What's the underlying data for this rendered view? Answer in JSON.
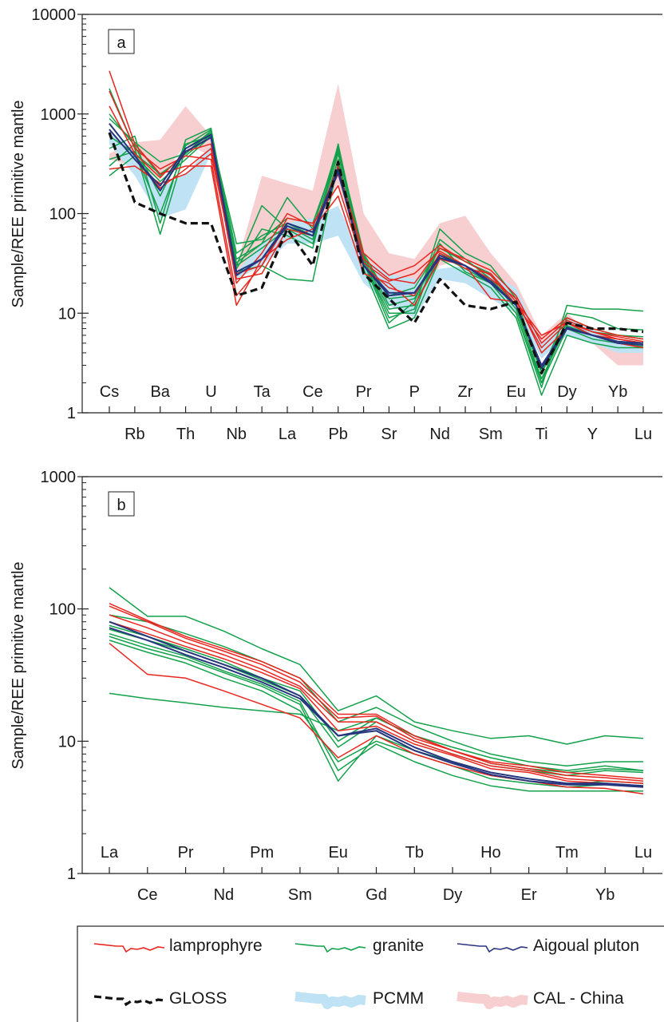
{
  "colors": {
    "lamprophyre": "#e8261f",
    "granite": "#13a14b",
    "aigoual": "#27357e",
    "gloss": "#111111",
    "pcmm": "#bfe3f4",
    "cal_china": "#f8cfd0"
  },
  "legend": {
    "items": [
      {
        "key": "lamprophyre",
        "label": "lamprophyre",
        "style": "line"
      },
      {
        "key": "granite",
        "label": "granite",
        "style": "line"
      },
      {
        "key": "aigoual",
        "label": "Aigoual pluton",
        "style": "line"
      },
      {
        "key": "gloss",
        "label": "GLOSS",
        "style": "dashed"
      },
      {
        "key": "pcmm",
        "label": "PCMM",
        "style": "band"
      },
      {
        "key": "cal_china",
        "label": "CAL - China",
        "style": "band"
      }
    ]
  },
  "chart_data": [
    {
      "type": "line",
      "panel_label": "a",
      "ylabel": "Sample/REE primitive mantle",
      "yscale": "log",
      "ylim": [
        1,
        10000
      ],
      "yticks": [
        "1",
        "10",
        "100",
        "1000",
        "10000"
      ],
      "categories": [
        "Cs",
        "Rb",
        "Ba",
        "Th",
        "U",
        "Nb",
        "Ta",
        "La",
        "Ce",
        "Pb",
        "Pr",
        "Sr",
        "P",
        "Nd",
        "Zr",
        "Sm",
        "Eu",
        "Ti",
        "Dy",
        "Y",
        "Yb",
        "Lu"
      ],
      "bands": [
        {
          "key": "cal_china",
          "upper": [
            400,
            520,
            550,
            1200,
            600,
            30,
            240,
            200,
            170,
            2000,
            100,
            40,
            35,
            80,
            95,
            40,
            20,
            6,
            10,
            6,
            5,
            5
          ],
          "lower": [
            350,
            300,
            220,
            500,
            380,
            25,
            30,
            80,
            50,
            200,
            30,
            22,
            10,
            30,
            35,
            25,
            10,
            4,
            7,
            5,
            3,
            3
          ]
        },
        {
          "key": "pcmm",
          "upper": [
            700,
            400,
            180,
            250,
            480,
            26,
            50,
            80,
            90,
            120,
            35,
            25,
            22,
            28,
            30,
            25,
            18,
            5,
            9,
            7,
            5,
            5
          ],
          "lower": [
            500,
            240,
            90,
            110,
            400,
            22,
            30,
            50,
            50,
            60,
            20,
            12,
            9,
            22,
            20,
            14,
            10,
            3.5,
            6,
            5,
            4,
            4
          ]
        }
      ],
      "series": [
        {
          "group": "granite",
          "values": [
            300,
            500,
            240,
            400,
            650,
            40,
            60,
            80,
            60,
            450,
            40,
            14,
            15,
            45,
            33,
            25,
            12,
            2.5,
            8,
            6,
            5.5,
            5
          ]
        },
        {
          "group": "granite",
          "values": [
            240,
            380,
            210,
            350,
            600,
            35,
            50,
            75,
            55,
            400,
            38,
            12,
            14,
            40,
            30,
            22,
            11,
            2.2,
            7.5,
            6,
            5.2,
            4.8
          ]
        },
        {
          "group": "granite",
          "values": [
            350,
            420,
            100,
            480,
            700,
            30,
            45,
            70,
            50,
            350,
            35,
            11,
            12,
            38,
            28,
            20,
            10,
            2,
            7,
            5.5,
            5,
            4.6
          ]
        },
        {
          "group": "granite",
          "values": [
            450,
            600,
            80,
            550,
            720,
            30,
            120,
            70,
            60,
            300,
            33,
            10,
            10,
            50,
            26,
            20,
            10,
            1.8,
            12,
            11,
            11,
            10.5
          ]
        },
        {
          "group": "granite",
          "values": [
            1800,
            450,
            62,
            450,
            650,
            28,
            70,
            60,
            45,
            500,
            33,
            9,
            11,
            70,
            40,
            30,
            14,
            2.6,
            10,
            9,
            7,
            6.8
          ]
        },
        {
          "group": "granite",
          "values": [
            900,
            520,
            330,
            400,
            680,
            32,
            50,
            145,
            70,
            480,
            32,
            8,
            13,
            55,
            35,
            22,
            12,
            2,
            9,
            7,
            6,
            5.5
          ]
        },
        {
          "group": "granite",
          "values": [
            600,
            400,
            250,
            380,
            620,
            26,
            30,
            22,
            21,
            320,
            28,
            7,
            9,
            35,
            25,
            18,
            9,
            1.5,
            6,
            5,
            4.5,
            4.5
          ]
        },
        {
          "group": "granite",
          "values": [
            1000,
            480,
            150,
            500,
            600,
            50,
            55,
            90,
            80,
            420,
            36,
            15,
            18,
            45,
            33,
            24,
            12,
            2.8,
            8,
            6.5,
            6,
            5.8
          ]
        },
        {
          "group": "lamprophyre",
          "values": [
            2700,
            500,
            250,
            300,
            300,
            12,
            35,
            55,
            70,
            150,
            25,
            20,
            12,
            35,
            30,
            22,
            14,
            4,
            7,
            6,
            5,
            4.5
          ]
        },
        {
          "group": "lamprophyre",
          "values": [
            1700,
            450,
            280,
            380,
            350,
            15,
            30,
            90,
            80,
            190,
            30,
            18,
            15,
            40,
            28,
            25,
            13,
            4.5,
            8,
            6,
            5.5,
            5
          ]
        },
        {
          "group": "lamprophyre",
          "values": [
            1200,
            400,
            230,
            420,
            500,
            20,
            40,
            100,
            75,
            250,
            35,
            22,
            20,
            45,
            35,
            27,
            15,
            5,
            8.5,
            6.5,
            5.8,
            5.2
          ]
        },
        {
          "group": "lamprophyre",
          "values": [
            700,
            350,
            180,
            280,
            450,
            22,
            25,
            70,
            60,
            280,
            40,
            24,
            30,
            48,
            33,
            24,
            12,
            5.5,
            9,
            7,
            6,
            5.5
          ]
        },
        {
          "group": "lamprophyre",
          "values": [
            280,
            300,
            200,
            250,
            400,
            25,
            30,
            80,
            65,
            300,
            32,
            21,
            25,
            42,
            30,
            14,
            13,
            6,
            8,
            6.5,
            5.5,
            5
          ]
        },
        {
          "group": "aigoual",
          "values": [
            800,
            380,
            170,
            420,
            580,
            24,
            35,
            75,
            60,
            260,
            30,
            15,
            16,
            36,
            30,
            20,
            12,
            2.8,
            7,
            6,
            5,
            4.8
          ]
        },
        {
          "group": "aigoual",
          "values": [
            700,
            350,
            190,
            450,
            620,
            26,
            35,
            80,
            65,
            280,
            30,
            16,
            16,
            38,
            30,
            21,
            12,
            3,
            7.2,
            6,
            5.2,
            5
          ]
        },
        {
          "group": "gloss",
          "values": [
            650,
            130,
            100,
            80,
            80,
            15,
            18,
            70,
            30,
            330,
            25,
            14,
            8,
            22,
            12,
            11,
            13,
            2.5,
            8,
            7,
            7,
            6.5
          ]
        }
      ]
    },
    {
      "type": "line",
      "panel_label": "b",
      "ylabel": "Sample/REE primitive mantle",
      "yscale": "log",
      "ylim": [
        1,
        1000
      ],
      "yticks": [
        "1",
        "10",
        "100",
        "1000"
      ],
      "categories": [
        "La",
        "Ce",
        "Pr",
        "Nd",
        "Pm",
        "Sm",
        "Eu",
        "Gd",
        "Tb",
        "Dy",
        "Ho",
        "Er",
        "Tm",
        "Yb",
        "Lu"
      ],
      "series": [
        {
          "group": "granite",
          "values": [
            145,
            88,
            88,
            68,
            50,
            38,
            17,
            22,
            14,
            12,
            10.5,
            11,
            9.5,
            11,
            10.5
          ]
        },
        {
          "group": "granite",
          "values": [
            23,
            21,
            19.5,
            18,
            17,
            16,
            12,
            15,
            11,
            9,
            7.5,
            6.5,
            6,
            6.5,
            6
          ]
        },
        {
          "group": "granite",
          "values": [
            90,
            80,
            65,
            52,
            40,
            30,
            14,
            18,
            13,
            10,
            8,
            7,
            6.5,
            7,
            7
          ]
        },
        {
          "group": "granite",
          "values": [
            70,
            58,
            48,
            38,
            29,
            22,
            9,
            14,
            10,
            8,
            6.5,
            6,
            5.5,
            6,
            5.8
          ]
        },
        {
          "group": "granite",
          "values": [
            62,
            50,
            42,
            33,
            26,
            19,
            5,
            11,
            8.5,
            7,
            5.5,
            5,
            4.7,
            5,
            4.8
          ]
        },
        {
          "group": "granite",
          "values": [
            58,
            47,
            39,
            30,
            24,
            17,
            7,
            10,
            8,
            6.5,
            5.2,
            4.8,
            4.5,
            4.7,
            4.6
          ]
        },
        {
          "group": "granite",
          "values": [
            75,
            62,
            50,
            40,
            30,
            24,
            10,
            15,
            11,
            8.5,
            6.8,
            6.2,
            5.8,
            6.2,
            6
          ]
        },
        {
          "group": "granite",
          "values": [
            65,
            53,
            44,
            34,
            27,
            20,
            6,
            9.5,
            7,
            5.5,
            4.6,
            4.2,
            4.2,
            4.2,
            4.2
          ]
        },
        {
          "group": "lamprophyre",
          "values": [
            110,
            82,
            62,
            50,
            40,
            30,
            16,
            16,
            11,
            8.5,
            7,
            6.5,
            5.8,
            5.5,
            5.2
          ]
        },
        {
          "group": "lamprophyre",
          "values": [
            105,
            80,
            60,
            48,
            38,
            28,
            15,
            15.5,
            10.5,
            8.5,
            6.8,
            6.2,
            5.5,
            5.3,
            5
          ]
        },
        {
          "group": "lamprophyre",
          "values": [
            90,
            72,
            56,
            45,
            35,
            26,
            14,
            14,
            10,
            8,
            6.5,
            6,
            5.2,
            5,
            4.8
          ]
        },
        {
          "group": "lamprophyre",
          "values": [
            55,
            32,
            30,
            24,
            19,
            15,
            7.5,
            11,
            8,
            6.5,
            5.5,
            5,
            4.5,
            4.4,
            4
          ]
        },
        {
          "group": "lamprophyre",
          "values": [
            80,
            65,
            52,
            42,
            33,
            25,
            12,
            13,
            9.5,
            7.8,
            6.2,
            5.8,
            5,
            4.8,
            4.5
          ]
        },
        {
          "group": "aigoual",
          "values": [
            80,
            62,
            48,
            38,
            30,
            22,
            11,
            12.5,
            9,
            7,
            5.8,
            5.2,
            4.8,
            4.8,
            4.6
          ]
        },
        {
          "group": "aigoual",
          "values": [
            72,
            58,
            45,
            36,
            28,
            21,
            11,
            12,
            8.5,
            6.8,
            5.6,
            5,
            4.7,
            4.7,
            4.5
          ]
        }
      ]
    }
  ]
}
